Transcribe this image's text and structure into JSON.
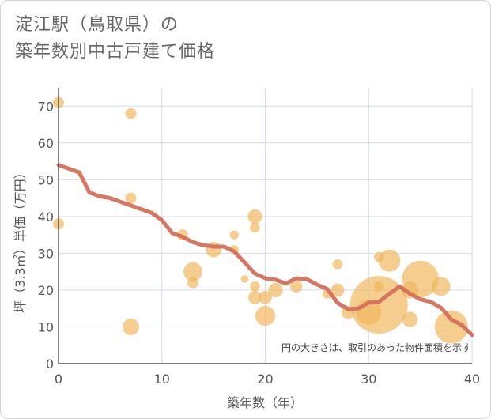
{
  "title_line1": "淀江駅（鳥取県）の",
  "title_line2": "築年数別中古戸建て価格",
  "chart_data": {
    "type": "scatter",
    "title": "淀江駅（鳥取県）の築年数別中古戸建て価格",
    "xlabel": "築年数（年）",
    "ylabel": "坪（3.3㎡）単価（万円）",
    "xlim": [
      0,
      40
    ],
    "ylim": [
      0,
      75
    ],
    "xticks": [
      0,
      10,
      20,
      30,
      40
    ],
    "yticks": [
      0,
      10,
      20,
      30,
      40,
      50,
      60,
      70
    ],
    "note": "円の大きさは、取引のあった物件面積を示す",
    "bubble_color": "#f0b860",
    "line_color": "#d4705c",
    "points": [
      {
        "x": 0,
        "y": 71,
        "size": 1
      },
      {
        "x": 0,
        "y": 38,
        "size": 1
      },
      {
        "x": 7,
        "y": 68,
        "size": 1
      },
      {
        "x": 7,
        "y": 45,
        "size": 1
      },
      {
        "x": 7,
        "y": 10,
        "size": 1.5
      },
      {
        "x": 12,
        "y": 35,
        "size": 1
      },
      {
        "x": 13,
        "y": 25,
        "size": 1.7
      },
      {
        "x": 13,
        "y": 22,
        "size": 1
      },
      {
        "x": 15,
        "y": 31,
        "size": 1.4
      },
      {
        "x": 17,
        "y": 35,
        "size": 0.8
      },
      {
        "x": 17,
        "y": 31,
        "size": 0.8
      },
      {
        "x": 18,
        "y": 23,
        "size": 0.7
      },
      {
        "x": 19,
        "y": 40,
        "size": 1.3
      },
      {
        "x": 19,
        "y": 37,
        "size": 0.9
      },
      {
        "x": 19,
        "y": 21,
        "size": 0.9
      },
      {
        "x": 19,
        "y": 18,
        "size": 1.2
      },
      {
        "x": 20,
        "y": 18,
        "size": 1.2
      },
      {
        "x": 20,
        "y": 13,
        "size": 1.8
      },
      {
        "x": 21,
        "y": 20,
        "size": 1.3
      },
      {
        "x": 23,
        "y": 21,
        "size": 1.1
      },
      {
        "x": 26,
        "y": 19,
        "size": 0.9
      },
      {
        "x": 27,
        "y": 27,
        "size": 0.9
      },
      {
        "x": 27,
        "y": 20,
        "size": 1.2
      },
      {
        "x": 28,
        "y": 14,
        "size": 1.2
      },
      {
        "x": 30,
        "y": 14,
        "size": 2.3
      },
      {
        "x": 31,
        "y": 29,
        "size": 0.9
      },
      {
        "x": 31,
        "y": 21,
        "size": 0.9
      },
      {
        "x": 31,
        "y": 16,
        "size": 5.2
      },
      {
        "x": 32,
        "y": 28,
        "size": 2
      },
      {
        "x": 34,
        "y": 20,
        "size": 1.5
      },
      {
        "x": 34,
        "y": 12,
        "size": 1.4
      },
      {
        "x": 35,
        "y": 23,
        "size": 3.3
      },
      {
        "x": 37,
        "y": 21,
        "size": 1.7
      },
      {
        "x": 38,
        "y": 10,
        "size": 3
      }
    ],
    "trend": {
      "x": [
        0,
        1,
        2,
        3,
        4,
        5,
        6,
        7,
        8,
        9,
        10,
        11,
        12,
        13,
        14,
        15,
        16,
        17,
        18,
        19,
        20,
        21,
        22,
        23,
        24,
        25,
        26,
        27,
        28,
        29,
        30,
        31,
        32,
        33,
        34,
        35,
        36,
        37,
        38,
        39,
        40
      ],
      "y": [
        54,
        53,
        52,
        46.5,
        45.5,
        45,
        44,
        43,
        42,
        41,
        39,
        35.5,
        34.5,
        33,
        32.2,
        31.8,
        31.8,
        30.5,
        27.5,
        24.5,
        23.2,
        22.8,
        21.8,
        23.2,
        23.0,
        21.5,
        20.3,
        16.5,
        14.8,
        15,
        16.6,
        16.8,
        19,
        21,
        19,
        17.5,
        16.8,
        15.2,
        12,
        10.5,
        7.8
      ]
    }
  }
}
